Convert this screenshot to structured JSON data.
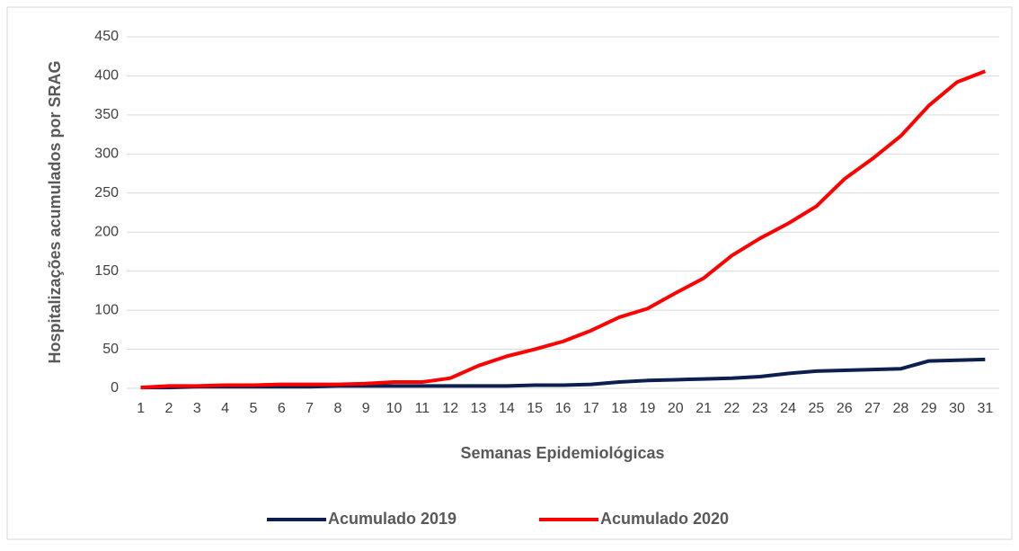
{
  "chart_data": {
    "type": "line",
    "categories": [
      "1",
      "2",
      "3",
      "4",
      "5",
      "6",
      "7",
      "8",
      "9",
      "10",
      "11",
      "12",
      "13",
      "14",
      "15",
      "16",
      "17",
      "18",
      "19",
      "20",
      "21",
      "22",
      "23",
      "24",
      "25",
      "26",
      "27",
      "28",
      "29",
      "30",
      "31"
    ],
    "series": [
      {
        "name": "Acumulado 2019",
        "color": "#0d1f4f",
        "values": [
          1,
          1,
          2,
          2,
          2,
          2,
          2,
          3,
          3,
          3,
          3,
          3,
          3,
          3,
          4,
          4,
          5,
          8,
          10,
          11,
          12,
          13,
          15,
          19,
          22,
          23,
          24,
          25,
          35,
          36,
          37
        ]
      },
      {
        "name": "Acumulado 2020",
        "color": "#ff0000",
        "values": [
          1,
          3,
          3,
          4,
          4,
          5,
          5,
          5,
          6,
          8,
          8,
          13,
          29,
          41,
          50,
          60,
          74,
          91,
          102,
          122,
          141,
          170,
          192,
          211,
          233,
          268,
          294,
          323,
          362,
          392,
          406
        ]
      }
    ],
    "x_label": "Semanas Epidemiológicas",
    "y_label": "Hospitalizações  acumulados por SRAG",
    "ylim": [
      0,
      450
    ],
    "yticks": [
      0,
      50,
      100,
      150,
      200,
      250,
      300,
      350,
      400,
      450
    ],
    "grid": true,
    "legend": "bottom"
  }
}
